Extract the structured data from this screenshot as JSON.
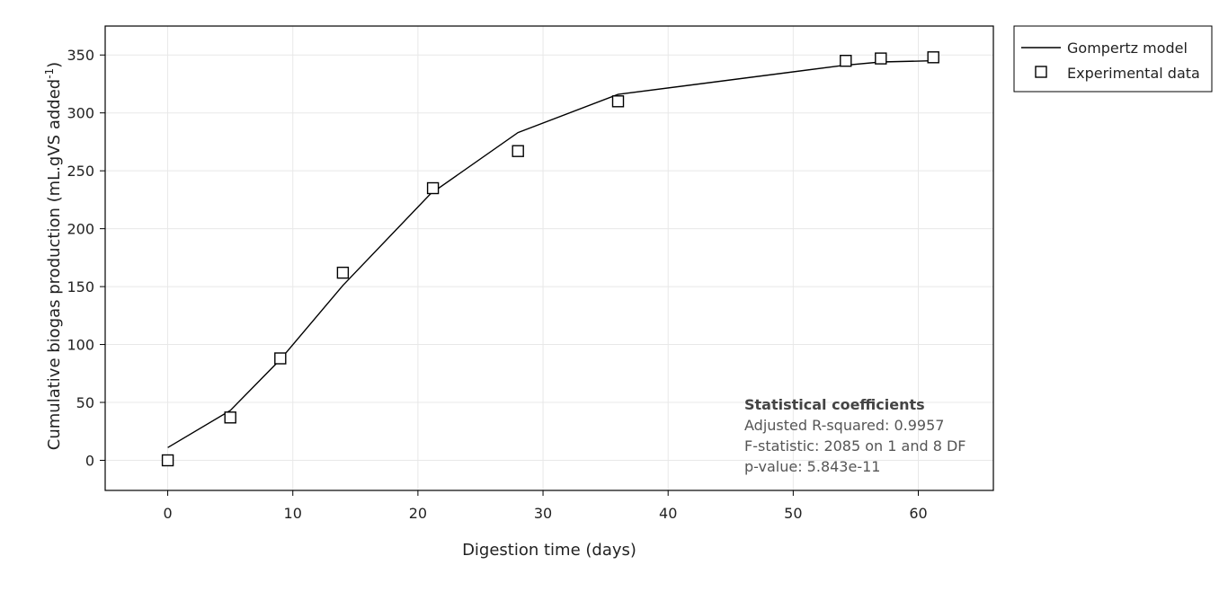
{
  "chart_data": {
    "type": "scatter",
    "xlabel": "Digestion time (days)",
    "ylabel_main": "Cumulative biogas production (mL.gVS added",
    "ylabel_sup": "-1",
    "ylabel_close": ")",
    "xlim": [
      -5,
      66
    ],
    "ylim": [
      -26,
      375
    ],
    "x_ticks": [
      0,
      10,
      20,
      30,
      40,
      50,
      60
    ],
    "y_ticks": [
      0,
      50,
      100,
      150,
      200,
      250,
      300,
      350
    ],
    "grid": true,
    "legend_position": "outside-top-right",
    "series": [
      {
        "name": "Gompertz model",
        "kind": "line",
        "color": "#000000",
        "x": [
          0,
          5,
          9,
          14,
          21,
          28,
          36,
          54,
          57,
          61
        ],
        "y": [
          11,
          43,
          87,
          151,
          230,
          283,
          316,
          341,
          344,
          345
        ]
      },
      {
        "name": "Experimental data",
        "kind": "marker",
        "marker": "square",
        "color": "#000000",
        "x": [
          0,
          5,
          9,
          14,
          21.2,
          28,
          36,
          54.2,
          57,
          61.2
        ],
        "y": [
          0,
          37,
          88,
          162,
          235,
          267,
          310,
          345,
          347,
          348
        ]
      }
    ],
    "annotation": {
      "title": "Statistical coefficients",
      "lines": [
        "Adjusted R-squared:  0.9957",
        "F-statistic:  2085 on 1 and 8 DF",
        "p-value: 5.843e-11"
      ]
    }
  }
}
